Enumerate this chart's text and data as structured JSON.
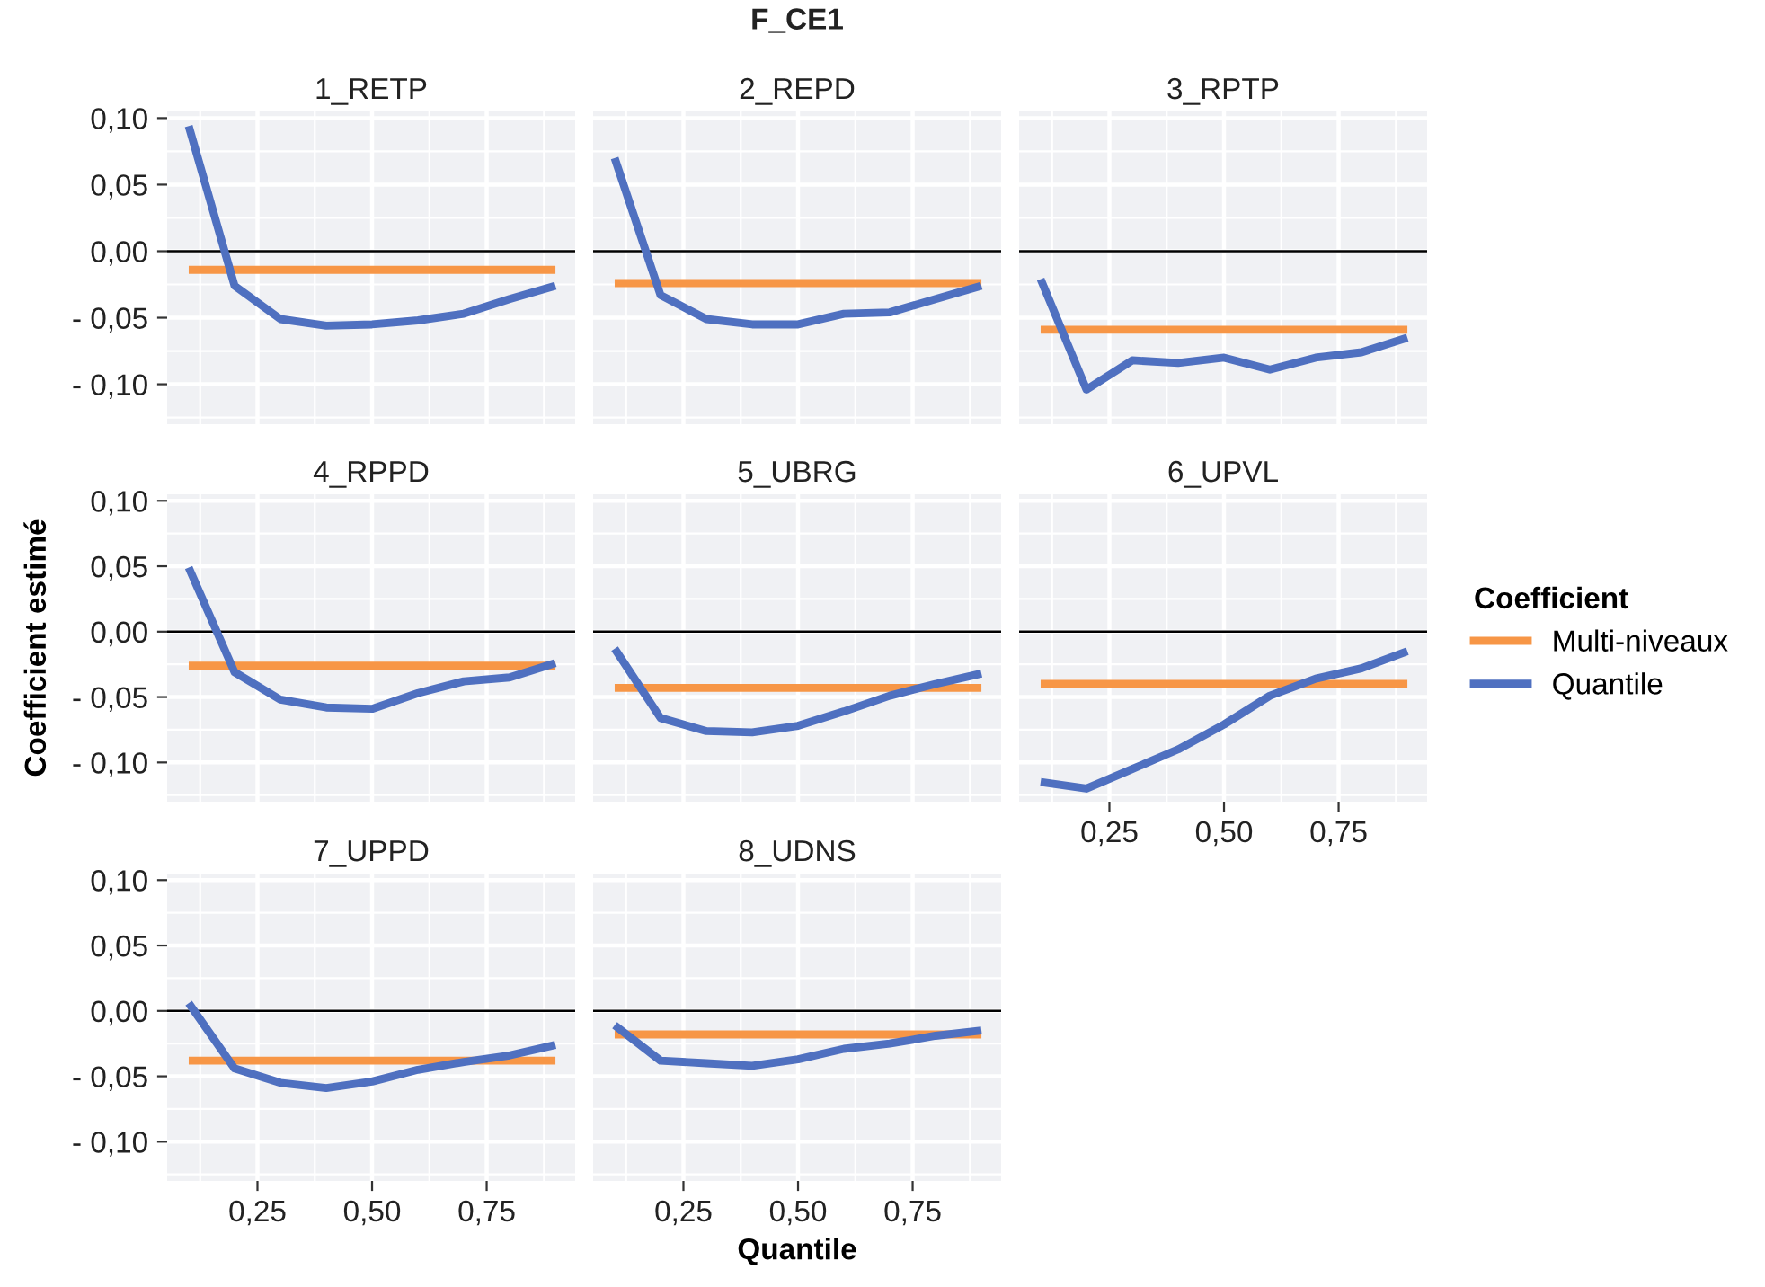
{
  "chart_data": [
    {
      "type": "line",
      "title": "1_RETP",
      "annotations": [
        "F_CE1"
      ],
      "legend_title": "Coefficient",
      "x": [
        0.1,
        0.2,
        0.3,
        0.4,
        0.5,
        0.6,
        0.7,
        0.8,
        0.9
      ],
      "xlim": [
        0.053,
        0.943
      ],
      "ylim": [
        -0.13,
        0.105
      ],
      "xticks": [
        {
          "value": 0.25,
          "label": null
        },
        {
          "value": 0.5,
          "label": null
        },
        {
          "value": 0.75,
          "label": null
        }
      ],
      "yticks": [
        {
          "value": -0.1,
          "label": "- 0,10"
        },
        {
          "value": -0.05,
          "label": "- 0,05"
        },
        {
          "value": 0,
          "label": "0,00"
        },
        {
          "value": 0.05,
          "label": "0,05"
        },
        {
          "value": 0.1,
          "label": "0,10"
        }
      ],
      "tick_labels": "y",
      "grid": true,
      "legend": "right",
      "ref_lines": [
        {
          "axis": "y",
          "value": 0,
          "color": "#000000"
        }
      ],
      "series": [
        {
          "name": "Multi-niveaux",
          "color": "#f79646",
          "values": [
            -0.014,
            -0.014,
            -0.014,
            -0.014,
            -0.014,
            -0.014,
            -0.014,
            -0.014,
            -0.014
          ]
        },
        {
          "name": "Quantile",
          "color": "#4f70c0",
          "values": [
            0.094,
            -0.026,
            -0.051,
            -0.056,
            -0.055,
            -0.052,
            -0.047,
            -0.036,
            -0.026
          ]
        }
      ]
    },
    {
      "type": "line",
      "title": "2_REPD",
      "x": [
        0.1,
        0.2,
        0.3,
        0.4,
        0.5,
        0.6,
        0.7,
        0.8,
        0.9
      ],
      "xlim": [
        0.053,
        0.943
      ],
      "ylim": [
        -0.13,
        0.105
      ],
      "xticks": [
        {
          "value": 0.25,
          "label": null
        },
        {
          "value": 0.5,
          "label": null
        },
        {
          "value": 0.75,
          "label": null
        }
      ],
      "yticks": [
        {
          "value": -0.1,
          "label": null
        },
        {
          "value": -0.05,
          "label": null
        },
        {
          "value": 0,
          "label": null
        },
        {
          "value": 0.05,
          "label": null
        },
        {
          "value": 0.1,
          "label": null
        }
      ],
      "tick_labels": false,
      "grid": true,
      "ref_lines": [
        {
          "axis": "y",
          "value": 0,
          "color": "#000000"
        }
      ],
      "series": [
        {
          "color": "#f79646",
          "values": [
            -0.024,
            -0.024,
            -0.024,
            -0.024,
            -0.024,
            -0.024,
            -0.024,
            -0.024,
            -0.024
          ]
        },
        {
          "color": "#4f70c0",
          "values": [
            0.07,
            -0.033,
            -0.051,
            -0.055,
            -0.055,
            -0.047,
            -0.046,
            -0.036,
            -0.026
          ]
        }
      ]
    },
    {
      "type": "line",
      "title": "3_RPTP",
      "x": [
        0.1,
        0.2,
        0.3,
        0.4,
        0.5,
        0.6,
        0.7,
        0.8,
        0.9
      ],
      "xlim": [
        0.053,
        0.943
      ],
      "ylim": [
        -0.13,
        0.105
      ],
      "xticks": [
        {
          "value": 0.25,
          "label": null
        },
        {
          "value": 0.5,
          "label": null
        },
        {
          "value": 0.75,
          "label": null
        }
      ],
      "yticks": [
        {
          "value": -0.1,
          "label": null
        },
        {
          "value": -0.05,
          "label": null
        },
        {
          "value": 0,
          "label": null
        },
        {
          "value": 0.05,
          "label": null
        },
        {
          "value": 0.1,
          "label": null
        }
      ],
      "tick_labels": false,
      "grid": true,
      "ref_lines": [
        {
          "axis": "y",
          "value": 0,
          "color": "#000000"
        }
      ],
      "series": [
        {
          "color": "#f79646",
          "values": [
            -0.059,
            -0.059,
            -0.059,
            -0.059,
            -0.059,
            -0.059,
            -0.059,
            -0.059,
            -0.059
          ]
        },
        {
          "color": "#4f70c0",
          "values": [
            -0.021,
            -0.104,
            -0.082,
            -0.084,
            -0.08,
            -0.089,
            -0.08,
            -0.076,
            -0.065
          ]
        }
      ]
    },
    {
      "type": "line",
      "title": "4_RPPD",
      "ylabel": "Coefficient estimé",
      "x": [
        0.1,
        0.2,
        0.3,
        0.4,
        0.5,
        0.6,
        0.7,
        0.8,
        0.9
      ],
      "xlim": [
        0.053,
        0.943
      ],
      "ylim": [
        -0.13,
        0.105
      ],
      "xticks": [
        {
          "value": 0.25,
          "label": null
        },
        {
          "value": 0.5,
          "label": null
        },
        {
          "value": 0.75,
          "label": null
        }
      ],
      "yticks": [
        {
          "value": -0.1,
          "label": "- 0,10"
        },
        {
          "value": -0.05,
          "label": "- 0,05"
        },
        {
          "value": 0,
          "label": "0,00"
        },
        {
          "value": 0.05,
          "label": "0,05"
        },
        {
          "value": 0.1,
          "label": "0,10"
        }
      ],
      "tick_labels": "y",
      "grid": true,
      "ref_lines": [
        {
          "axis": "y",
          "value": 0,
          "color": "#000000"
        }
      ],
      "series": [
        {
          "color": "#f79646",
          "values": [
            -0.026,
            -0.026,
            -0.026,
            -0.026,
            -0.026,
            -0.026,
            -0.026,
            -0.026,
            -0.026
          ]
        },
        {
          "color": "#4f70c0",
          "values": [
            0.049,
            -0.031,
            -0.052,
            -0.058,
            -0.059,
            -0.047,
            -0.038,
            -0.035,
            -0.024
          ]
        }
      ]
    },
    {
      "type": "line",
      "title": "5_UBRG",
      "x": [
        0.1,
        0.2,
        0.3,
        0.4,
        0.5,
        0.6,
        0.7,
        0.8,
        0.9
      ],
      "xlim": [
        0.053,
        0.943
      ],
      "ylim": [
        -0.13,
        0.105
      ],
      "xticks": [
        {
          "value": 0.25,
          "label": null
        },
        {
          "value": 0.5,
          "label": null
        },
        {
          "value": 0.75,
          "label": null
        }
      ],
      "yticks": [
        {
          "value": -0.1,
          "label": null
        },
        {
          "value": -0.05,
          "label": null
        },
        {
          "value": 0,
          "label": null
        },
        {
          "value": 0.05,
          "label": null
        },
        {
          "value": 0.1,
          "label": null
        }
      ],
      "tick_labels": false,
      "grid": true,
      "ref_lines": [
        {
          "axis": "y",
          "value": 0,
          "color": "#000000"
        }
      ],
      "series": [
        {
          "color": "#f79646",
          "values": [
            -0.043,
            -0.043,
            -0.043,
            -0.043,
            -0.043,
            -0.043,
            -0.043,
            -0.043,
            -0.043
          ]
        },
        {
          "color": "#4f70c0",
          "values": [
            -0.013,
            -0.066,
            -0.076,
            -0.077,
            -0.072,
            -0.061,
            -0.049,
            -0.04,
            -0.032
          ]
        }
      ]
    },
    {
      "type": "line",
      "title": "6_UPVL",
      "x": [
        0.1,
        0.2,
        0.3,
        0.4,
        0.5,
        0.6,
        0.7,
        0.8,
        0.9
      ],
      "xlim": [
        0.053,
        0.943
      ],
      "ylim": [
        -0.13,
        0.105
      ],
      "xticks": [
        {
          "value": 0.25,
          "label": "0,25"
        },
        {
          "value": 0.5,
          "label": "0,50"
        },
        {
          "value": 0.75,
          "label": "0,75"
        }
      ],
      "yticks": [
        {
          "value": -0.1,
          "label": null
        },
        {
          "value": -0.05,
          "label": null
        },
        {
          "value": 0,
          "label": null
        },
        {
          "value": 0.05,
          "label": null
        },
        {
          "value": 0.1,
          "label": null
        }
      ],
      "tick_labels": "x",
      "grid": true,
      "ref_lines": [
        {
          "axis": "y",
          "value": 0,
          "color": "#000000"
        }
      ],
      "series": [
        {
          "color": "#f79646",
          "values": [
            -0.04,
            -0.04,
            -0.04,
            -0.04,
            -0.04,
            -0.04,
            -0.04,
            -0.04,
            -0.04
          ]
        },
        {
          "color": "#4f70c0",
          "values": [
            -0.115,
            -0.12,
            -0.105,
            -0.09,
            -0.071,
            -0.049,
            -0.036,
            -0.028,
            -0.015
          ]
        }
      ]
    },
    {
      "type": "line",
      "title": "7_UPPD",
      "x": [
        0.1,
        0.2,
        0.3,
        0.4,
        0.5,
        0.6,
        0.7,
        0.8,
        0.9
      ],
      "xlim": [
        0.053,
        0.943
      ],
      "ylim": [
        -0.13,
        0.105
      ],
      "xticks": [
        {
          "value": 0.25,
          "label": "0,25"
        },
        {
          "value": 0.5,
          "label": "0,50"
        },
        {
          "value": 0.75,
          "label": "0,75"
        }
      ],
      "yticks": [
        {
          "value": -0.1,
          "label": "- 0,10"
        },
        {
          "value": -0.05,
          "label": "- 0,05"
        },
        {
          "value": 0,
          "label": "0,00"
        },
        {
          "value": 0.05,
          "label": "0,05"
        },
        {
          "value": 0.1,
          "label": "0,10"
        }
      ],
      "grid": true,
      "ref_lines": [
        {
          "axis": "y",
          "value": 0,
          "color": "#000000"
        }
      ],
      "series": [
        {
          "color": "#f79646",
          "values": [
            -0.038,
            -0.038,
            -0.038,
            -0.038,
            -0.038,
            -0.038,
            -0.038,
            -0.038,
            -0.038
          ]
        },
        {
          "color": "#4f70c0",
          "values": [
            0.006,
            -0.044,
            -0.055,
            -0.059,
            -0.054,
            -0.045,
            -0.039,
            -0.034,
            -0.026
          ]
        }
      ]
    },
    {
      "type": "line",
      "title": "8_UDNS",
      "xlabel": "Quantile",
      "x": [
        0.1,
        0.2,
        0.3,
        0.4,
        0.5,
        0.6,
        0.7,
        0.8,
        0.9
      ],
      "xlim": [
        0.053,
        0.943
      ],
      "ylim": [
        -0.13,
        0.105
      ],
      "xticks": [
        {
          "value": 0.25,
          "label": "0,25"
        },
        {
          "value": 0.5,
          "label": "0,50"
        },
        {
          "value": 0.75,
          "label": "0,75"
        }
      ],
      "yticks": [
        {
          "value": -0.1,
          "label": null
        },
        {
          "value": -0.05,
          "label": null
        },
        {
          "value": 0,
          "label": null
        },
        {
          "value": 0.05,
          "label": null
        },
        {
          "value": 0.1,
          "label": null
        }
      ],
      "tick_labels": "x",
      "grid": true,
      "ref_lines": [
        {
          "axis": "y",
          "value": 0,
          "color": "#000000"
        }
      ],
      "series": [
        {
          "color": "#f79646",
          "values": [
            -0.018,
            -0.018,
            -0.018,
            -0.018,
            -0.018,
            -0.018,
            -0.018,
            -0.018,
            -0.018
          ]
        },
        {
          "color": "#4f70c0",
          "values": [
            -0.011,
            -0.038,
            -0.04,
            -0.042,
            -0.037,
            -0.029,
            -0.025,
            -0.019,
            -0.015
          ]
        }
      ]
    }
  ]
}
